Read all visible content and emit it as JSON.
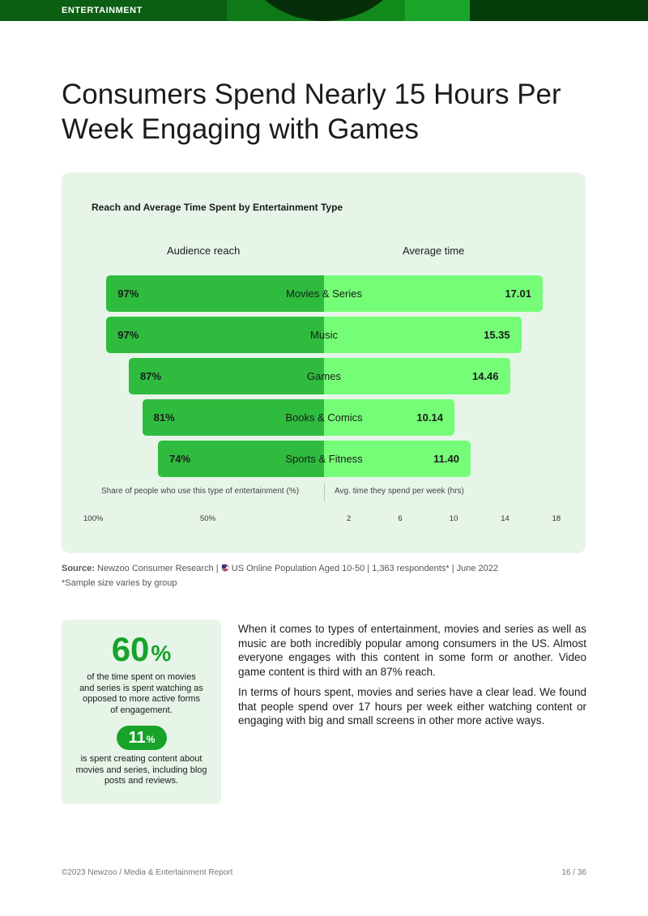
{
  "header": {
    "section": "ENTERTAINMENT"
  },
  "title": "Consumers Spend Nearly 15 Hours Per Week Engaging with Games",
  "chart_data": {
    "type": "bar",
    "title": "Reach and Average Time Spent by Entertainment Type",
    "categories": [
      "Movies & Series",
      "Music",
      "Games",
      "Books & Comics",
      "Sports & Fitness"
    ],
    "series": [
      {
        "name": "Audience reach",
        "values": [
          97,
          97,
          87,
          81,
          74
        ],
        "labels": [
          "97%",
          "97%",
          "87%",
          "81%",
          "74%"
        ]
      },
      {
        "name": "Average time",
        "values": [
          17.01,
          15.35,
          14.46,
          10.14,
          11.4
        ],
        "labels": [
          "17.01",
          "15.35",
          "14.46",
          "10.14",
          "11.40"
        ]
      }
    ],
    "left_axis_label": "Share of people who use this type of entertainment (%)",
    "right_axis_label": "Avg. time they spend per week (hrs)",
    "left_ticks": [
      "100%",
      "50%"
    ],
    "right_ticks": [
      "2",
      "6",
      "10",
      "14",
      "18"
    ],
    "left_range": [
      0,
      100
    ],
    "right_range": [
      0,
      18
    ],
    "colors": {
      "reach": "#2fbb3e",
      "time": "#76fd77"
    }
  },
  "source": {
    "label": "Source:",
    "text": "Newzoo Consumer Research | ",
    "text2": "US Online Population Aged 10-50 | 1,363 respondents* | June 2022",
    "note": "*Sample size varies by group"
  },
  "stats": {
    "big_value": "60",
    "big_unit": "%",
    "big_text": "of the time spent on movies and series is spent watching as opposed to more active forms of engagement.",
    "small_value": "11",
    "small_unit": "%",
    "small_text": "is spent creating content about movies and series, including blog posts and reviews."
  },
  "body": {
    "para1": "When it comes to types of entertainment, movies and series as well as music are both incredibly popular among consumers in the US. Almost everyone engages with this content in some form or another. Video game content is third with an 87% reach.",
    "para2": "In terms of hours spent, movies and series have a clear lead. We found that people spend over 17 hours per week either watching content or engaging with big and small screens in other more active ways."
  },
  "footer": {
    "left": "©2023 Newzoo / Media & Entertainment Report",
    "right": "16 / 36"
  }
}
